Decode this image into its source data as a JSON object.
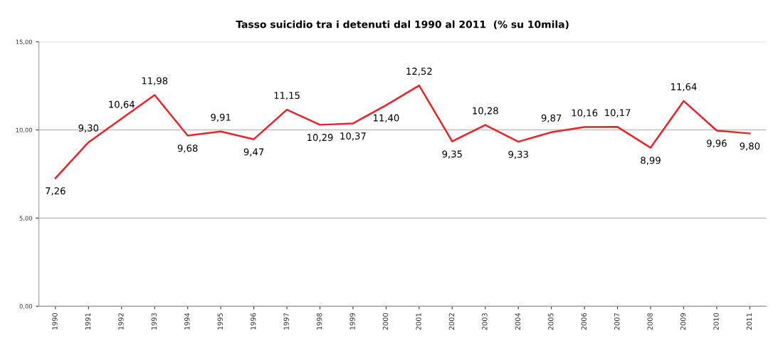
{
  "chart_data": {
    "type": "line",
    "title": "Tasso suicidio tra i detenuti dal 1990 al 2011  (% su 10mila)",
    "categories": [
      "1990",
      "1991",
      "1992",
      "1993",
      "1994",
      "1995",
      "1996",
      "1997",
      "1998",
      "1999",
      "2000",
      "2001",
      "2002",
      "2003",
      "2004",
      "2005",
      "2006",
      "2007",
      "2008",
      "2009",
      "2010",
      "2011"
    ],
    "series": [
      {
        "color": "#e8232a",
        "values": [
          7.26,
          9.3,
          10.64,
          11.98,
          9.68,
          9.91,
          9.47,
          11.15,
          10.29,
          10.37,
          11.4,
          12.52,
          9.35,
          10.28,
          9.33,
          9.87,
          10.16,
          10.17,
          8.99,
          11.64,
          9.96,
          9.8
        ],
        "value_labels": [
          "7,26",
          "9,30",
          "10,64",
          "11,98",
          "9,68",
          "9,91",
          "9,47",
          "11,15",
          "10,29",
          "10,37",
          "11,40",
          "12,52",
          "9,35",
          "10,28",
          "9,33",
          "9,87",
          "10,16",
          "10,17",
          "8,99",
          "11,64",
          "9,96",
          "9,80"
        ]
      }
    ],
    "ylim": [
      0,
      15
    ],
    "yticks": [
      {
        "value": 0,
        "label": "0,00"
      },
      {
        "value": 5,
        "label": "5,00"
      },
      {
        "value": 10,
        "label": "10,00"
      },
      {
        "value": 15,
        "label": "15,00"
      }
    ],
    "grid": "y",
    "legend": false,
    "marker": "none",
    "line_style": "solid"
  }
}
